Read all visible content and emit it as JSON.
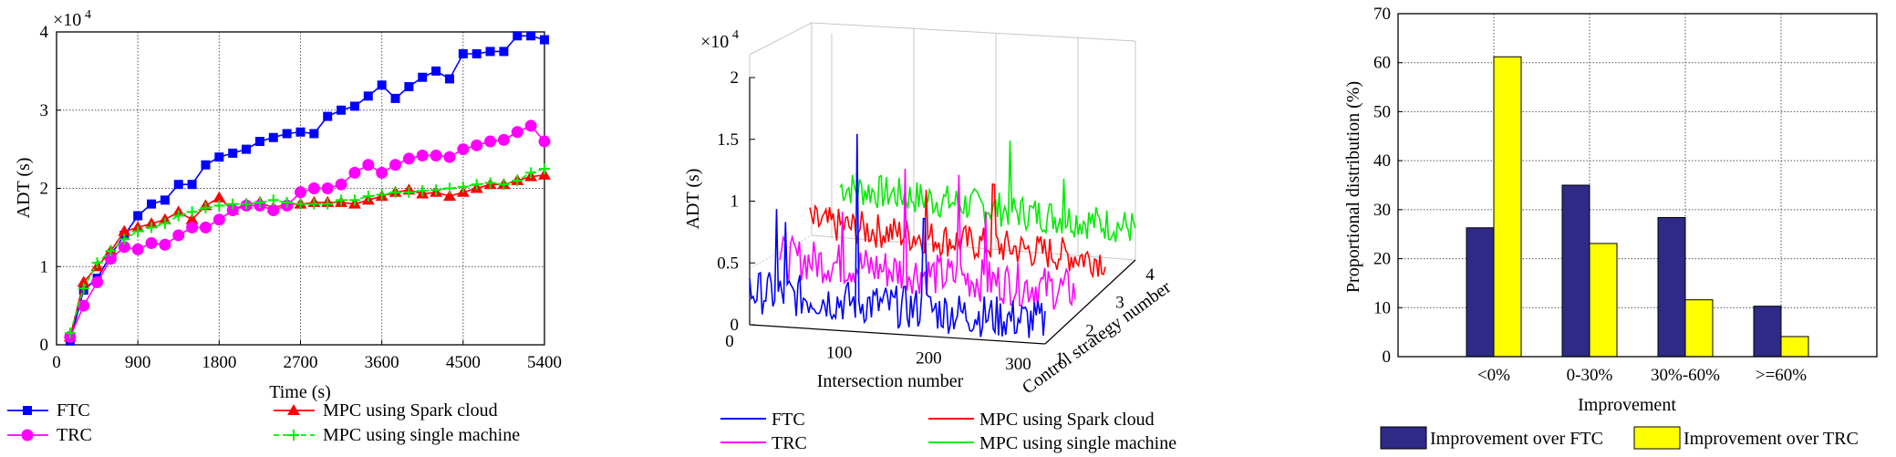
{
  "colors": {
    "ftc": "#0000ff",
    "trc": "#ff00ff",
    "mpc_spark": "#ff0000",
    "mpc_single": "#00ee00",
    "bar_ftc": "#2e2a86",
    "bar_trc": "#ffff00"
  },
  "chart_data": [
    {
      "type": "line",
      "panel": "left",
      "xlabel": "Time (s)",
      "ylabel": "ADT (s)",
      "y_multiplier": "×10",
      "y_exponent": "4",
      "xlim": [
        0,
        5400
      ],
      "ylim": [
        0,
        4
      ],
      "xticks": [
        "0",
        "900",
        "1800",
        "2700",
        "3600",
        "4500",
        "5400"
      ],
      "yticks": [
        "0",
        "1",
        "2",
        "3",
        "4"
      ],
      "x": [
        150,
        300,
        450,
        600,
        750,
        900,
        1050,
        1200,
        1350,
        1500,
        1650,
        1800,
        1950,
        2100,
        2250,
        2400,
        2550,
        2700,
        2850,
        3000,
        3150,
        3300,
        3450,
        3600,
        3750,
        3900,
        4050,
        4200,
        4350,
        4500,
        4650,
        4800,
        4950,
        5100,
        5250,
        5400
      ],
      "series": [
        {
          "name": "FTC",
          "key": "ftc",
          "marker": "square",
          "values": [
            0.05,
            0.7,
            0.85,
            1.15,
            1.4,
            1.65,
            1.8,
            1.85,
            2.05,
            2.05,
            2.3,
            2.4,
            2.45,
            2.5,
            2.6,
            2.65,
            2.7,
            2.72,
            2.7,
            2.92,
            3.0,
            3.05,
            3.18,
            3.32,
            3.15,
            3.3,
            3.42,
            3.5,
            3.4,
            3.72,
            3.72,
            3.75,
            3.75,
            3.95,
            3.95,
            3.9
          ]
        },
        {
          "name": "MPC using Spark cloud",
          "key": "mpc_spark",
          "marker": "triangle",
          "values": [
            0.1,
            0.8,
            1.0,
            1.2,
            1.45,
            1.5,
            1.55,
            1.6,
            1.7,
            1.6,
            1.78,
            1.88,
            1.72,
            1.8,
            1.82,
            1.75,
            1.8,
            1.8,
            1.82,
            1.82,
            1.82,
            1.8,
            1.85,
            1.9,
            1.95,
            1.98,
            1.93,
            1.95,
            1.9,
            1.95,
            2.0,
            2.05,
            2.05,
            2.1,
            2.15,
            2.17
          ]
        },
        {
          "name": "TRC",
          "key": "trc",
          "marker": "circle",
          "values": [
            0.1,
            0.5,
            0.8,
            1.1,
            1.25,
            1.22,
            1.3,
            1.28,
            1.4,
            1.5,
            1.5,
            1.6,
            1.72,
            1.78,
            1.78,
            1.72,
            1.78,
            1.95,
            2.0,
            2.0,
            2.05,
            2.2,
            2.3,
            2.2,
            2.3,
            2.38,
            2.42,
            2.42,
            2.4,
            2.5,
            2.55,
            2.6,
            2.62,
            2.72,
            2.8,
            2.6
          ]
        },
        {
          "name": "MPC using single machine",
          "key": "mpc_single",
          "marker": "plus",
          "dashed": true,
          "values": [
            0.15,
            0.72,
            1.05,
            1.2,
            1.35,
            1.45,
            1.5,
            1.55,
            1.65,
            1.7,
            1.75,
            1.78,
            1.8,
            1.8,
            1.82,
            1.85,
            1.82,
            1.8,
            1.8,
            1.8,
            1.85,
            1.85,
            1.9,
            1.92,
            1.95,
            1.95,
            1.97,
            1.98,
            2.0,
            2.02,
            2.05,
            2.07,
            2.05,
            2.1,
            2.2,
            2.25
          ]
        }
      ]
    },
    {
      "type": "line",
      "panel": "middle-3d",
      "xlabel": "Intersection number",
      "ylabel": "ADT (s)",
      "zlabel": "Control strategy number",
      "y_multiplier": "×10",
      "y_exponent": "4",
      "xlim": [
        0,
        330
      ],
      "zlim": [
        0,
        2
      ],
      "xticks": [
        "0",
        "100",
        "200",
        "300"
      ],
      "yticks": [
        "0",
        "0.5",
        "1",
        "1.5",
        "2"
      ],
      "depth_ticks": [
        "1",
        "2",
        "3",
        "4"
      ],
      "series": [
        {
          "name": "FTC",
          "key": "ftc",
          "depth": 1
        },
        {
          "name": "MPC using Spark cloud",
          "key": "mpc_spark",
          "depth": 3
        },
        {
          "name": "TRC",
          "key": "trc",
          "depth": 2
        },
        {
          "name": "MPC using single machine",
          "key": "mpc_single",
          "depth": 4
        }
      ]
    },
    {
      "type": "bar",
      "panel": "right",
      "xlabel": "Improvement",
      "ylabel": "Proportional distribution (%)",
      "ylim": [
        0,
        70
      ],
      "yticks": [
        "0",
        "10",
        "20",
        "30",
        "40",
        "50",
        "60",
        "70"
      ],
      "categories": [
        "<0%",
        "0-30%",
        "30%-60%",
        ">=60%"
      ],
      "series": [
        {
          "name": "Improvement over FTC",
          "key": "bar_ftc",
          "values": [
            26.3,
            35.0,
            28.4,
            10.3
          ]
        },
        {
          "name": "Improvement over TRC",
          "key": "bar_trc",
          "values": [
            61.2,
            23.1,
            11.6,
            4.1
          ]
        }
      ]
    }
  ]
}
